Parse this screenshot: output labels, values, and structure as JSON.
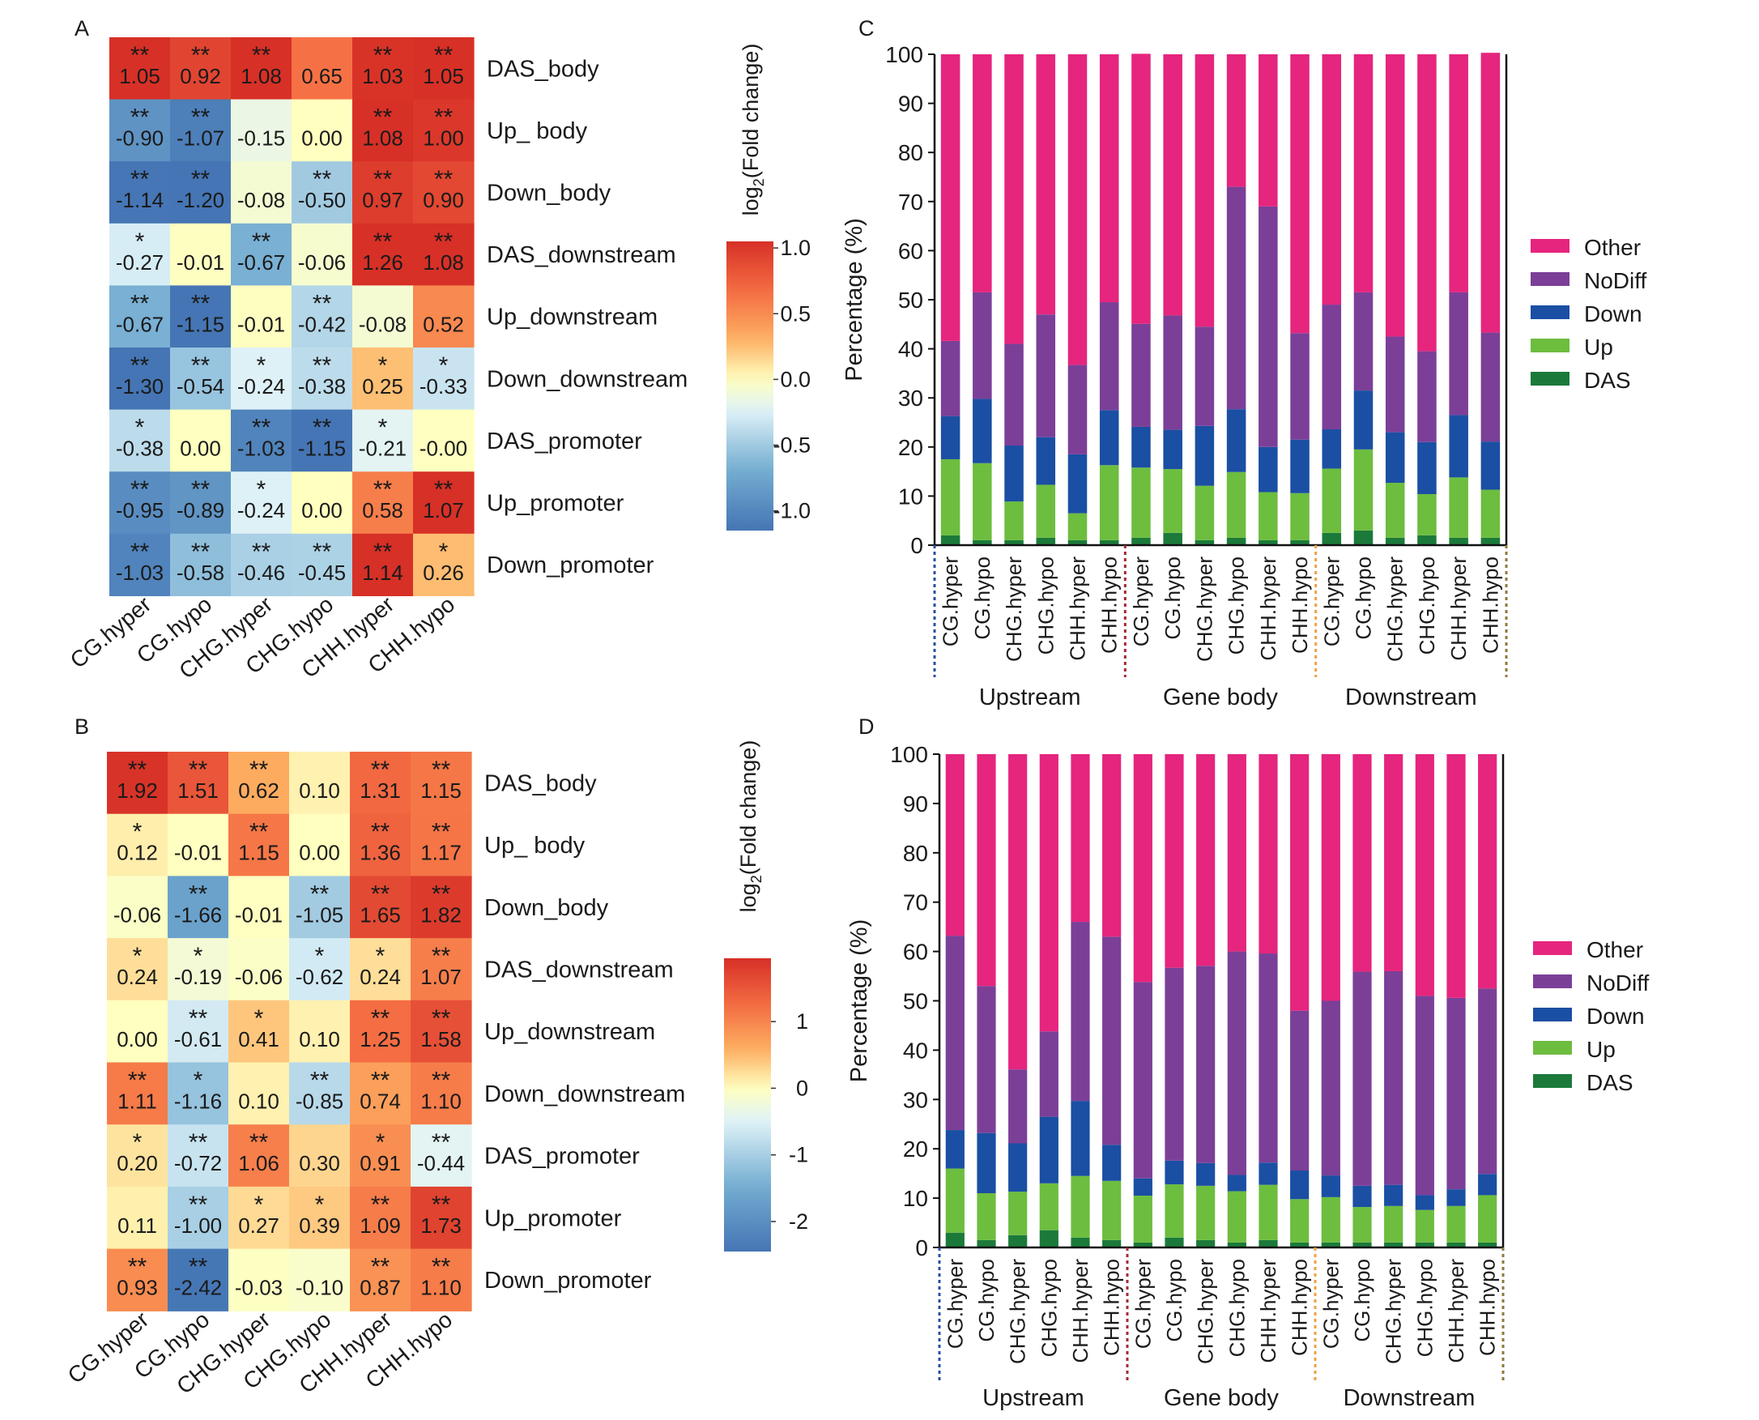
{
  "chart_data": [
    {
      "type": "heatmap",
      "panel_label": "A",
      "columns": [
        "CG.hyper",
        "CG.hypo",
        "CHG.hyper",
        "CHG.hypo",
        "CHH.hyper",
        "CHH.hypo"
      ],
      "rows": [
        "DAS_body",
        "Up_ body",
        "Down_body",
        "DAS_downstream",
        "Up_downstream",
        "Down_downstream",
        "DAS_promoter",
        "Up_promoter",
        "Down_promoter"
      ],
      "values": [
        [
          "1.05",
          "0.92",
          "1.08",
          "0.65",
          "1.03",
          "1.05"
        ],
        [
          "-0.90",
          "-1.07",
          "-0.15",
          "0.00",
          "1.08",
          "1.00"
        ],
        [
          "-1.14",
          "-1.20",
          "-0.08",
          "-0.50",
          "0.97",
          "0.90"
        ],
        [
          "-0.27",
          "-0.01",
          "-0.67",
          "-0.06",
          "1.26",
          "1.08"
        ],
        [
          "-0.67",
          "-1.15",
          "-0.01",
          "-0.42",
          "-0.08",
          "0.52"
        ],
        [
          "-1.30",
          "-0.54",
          "-0.24",
          "-0.38",
          "0.25",
          "-0.33"
        ],
        [
          "-0.38",
          "0.00",
          "-1.03",
          "-1.15",
          "-0.21",
          "-0.00"
        ],
        [
          "-0.95",
          "-0.89",
          "-0.24",
          "0.00",
          "0.58",
          "1.07"
        ],
        [
          "-1.03",
          "-0.58",
          "-0.46",
          "-0.45",
          "1.14",
          "0.26"
        ]
      ],
      "significance": [
        [
          "**",
          "**",
          "**",
          "",
          "**",
          "**"
        ],
        [
          "**",
          "**",
          "",
          "",
          "**",
          "**"
        ],
        [
          "**",
          "**",
          "",
          "**",
          "**",
          "**"
        ],
        [
          "*",
          "",
          "**",
          "",
          "**",
          "**"
        ],
        [
          "**",
          "**",
          "",
          "**",
          "",
          ""
        ],
        [
          "**",
          "**",
          "*",
          "**",
          "*",
          "*"
        ],
        [
          "*",
          "",
          "**",
          "**",
          "*",
          ""
        ],
        [
          "**",
          "**",
          "*",
          "",
          "**",
          "**"
        ],
        [
          "**",
          "**",
          "**",
          "**",
          "**",
          "*"
        ]
      ],
      "colorbar": {
        "title": "log2(Fold change)",
        "title_main": "log",
        "title_sub": "2",
        "title_rest": "(Fold change)",
        "ticks": [
          "1.0",
          "0.5",
          "0.0",
          "-0.5",
          "-1.0"
        ],
        "range": [
          -1.15,
          1.05
        ]
      }
    },
    {
      "type": "heatmap",
      "panel_label": "B",
      "columns": [
        "CG.hyper",
        "CG.hypo",
        "CHG.hyper",
        "CHG.hypo",
        "CHH.hyper",
        "CHH.hypo"
      ],
      "rows": [
        "DAS_body",
        "Up_ body",
        "Down_body",
        "DAS_downstream",
        "Up_downstream",
        "Down_downstream",
        "DAS_promoter",
        "Up_promoter",
        "Down_promoter"
      ],
      "values": [
        [
          "1.92",
          "1.51",
          "0.62",
          "0.10",
          "1.31",
          "1.15"
        ],
        [
          "0.12",
          "-0.01",
          "1.15",
          "0.00",
          "1.36",
          "1.17"
        ],
        [
          "-0.06",
          "-1.66",
          "-0.01",
          "-1.05",
          "1.65",
          "1.82"
        ],
        [
          "0.24",
          "-0.19",
          "-0.06",
          "-0.62",
          "0.24",
          "1.07"
        ],
        [
          "0.00",
          "-0.61",
          "0.41",
          "0.10",
          "1.25",
          "1.58"
        ],
        [
          "1.11",
          "-1.16",
          "0.10",
          "-0.85",
          "0.74",
          "1.10"
        ],
        [
          "0.20",
          "-0.72",
          "1.06",
          "0.30",
          "0.91",
          "-0.44"
        ],
        [
          "0.11",
          "-1.00",
          "0.27",
          "0.39",
          "1.09",
          "1.73"
        ],
        [
          "0.93",
          "-2.42",
          "-0.03",
          "-0.10",
          "0.87",
          "1.10"
        ]
      ],
      "significance": [
        [
          "**",
          "**",
          "**",
          "",
          "**",
          "**"
        ],
        [
          "*",
          "",
          "**",
          "",
          "**",
          "**"
        ],
        [
          "",
          "**",
          "",
          "**",
          "**",
          "**"
        ],
        [
          "*",
          "*",
          "",
          "*",
          "*",
          "**"
        ],
        [
          "",
          "**",
          "*",
          "",
          "**",
          "**"
        ],
        [
          "**",
          "*",
          "",
          "**",
          "**",
          "**"
        ],
        [
          "*",
          "**",
          "**",
          "",
          "*",
          "**"
        ],
        [
          "",
          "**",
          "*",
          "*",
          "**",
          "**"
        ],
        [
          "**",
          "**",
          "",
          "",
          "**",
          "**"
        ]
      ],
      "colorbar": {
        "title": "log2(Fold change)",
        "title_main": "log",
        "title_sub": "2",
        "title_rest": "(Fold change)",
        "ticks": [
          "1",
          "0",
          "-1",
          "-2"
        ],
        "range": [
          -2.45,
          1.95
        ]
      }
    },
    {
      "type": "bar",
      "stacked": true,
      "panel_label": "C",
      "ylabel": "Percentage (%)",
      "ylim": [
        0,
        100
      ],
      "yticks": [
        "0",
        "10",
        "20",
        "30",
        "40",
        "50",
        "60",
        "70",
        "80",
        "90",
        "100"
      ],
      "categories": [
        "CG.hyper",
        "CG.hypo",
        "CHG.hyper",
        "CHG.hypo",
        "CHH.hyper",
        "CHH.hypo",
        "CG.hyper",
        "CG.hypo",
        "CHG.hyper",
        "CHG.hypo",
        "CHH.hyper",
        "CHH.hypo",
        "CG.hyper",
        "CG.hypo",
        "CHG.hyper",
        "CHG.hypo",
        "CHH.hyper",
        "CHH.hypo"
      ],
      "groups": [
        {
          "label": "Upstream",
          "color": "#2a4fa6"
        },
        {
          "label": "Gene body",
          "color": "#a32b34"
        },
        {
          "label": "Downstream",
          "color": "#f0a046"
        }
      ],
      "end_line_color": "#8b7a3e",
      "series": [
        {
          "name": "DAS",
          "color": "#1b7a3a",
          "values": [
            2.0,
            1.0,
            1.0,
            1.5,
            1.0,
            1.0,
            1.5,
            2.5,
            1.0,
            1.5,
            1.0,
            1.0,
            2.5,
            3.0,
            1.5,
            2.0,
            1.5,
            1.5
          ]
        },
        {
          "name": "Up",
          "color": "#6dbd3f",
          "values": [
            15.5,
            15.7,
            7.9,
            10.8,
            5.5,
            15.3,
            14.3,
            13.0,
            11.1,
            13.4,
            9.8,
            9.6,
            13.1,
            16.5,
            11.2,
            8.4,
            12.3,
            9.8
          ]
        },
        {
          "name": "Down",
          "color": "#1a4fa3",
          "values": [
            8.8,
            13.1,
            11.4,
            9.7,
            12.0,
            11.2,
            8.3,
            8.0,
            12.2,
            12.8,
            9.2,
            10.9,
            8.0,
            12.0,
            10.3,
            10.6,
            12.7,
            9.8
          ]
        },
        {
          "name": "NoDiff",
          "color": "#7b3f98",
          "values": [
            15.3,
            21.7,
            20.7,
            25.0,
            18.2,
            22.0,
            21.0,
            23.3,
            20.2,
            45.3,
            49.0,
            21.7,
            25.4,
            20.0,
            19.5,
            18.5,
            25.0,
            22.2
          ]
        },
        {
          "name": "Other",
          "color": "#e5257e",
          "values": [
            58.4,
            48.5,
            59.0,
            53.0,
            63.3,
            50.5,
            55.0,
            53.2,
            55.5,
            27.0,
            31.0,
            56.8,
            51.0,
            48.5,
            57.5,
            60.5,
            48.5,
            57.0
          ]
        }
      ],
      "legend": {
        "position": "right",
        "order": [
          "Other",
          "NoDiff",
          "Down",
          "Up",
          "DAS"
        ]
      }
    },
    {
      "type": "bar",
      "stacked": true,
      "panel_label": "D",
      "ylabel": "Percentage (%)",
      "ylim": [
        0,
        100
      ],
      "yticks": [
        "0",
        "10",
        "20",
        "30",
        "40",
        "50",
        "60",
        "70",
        "80",
        "90",
        "100"
      ],
      "categories": [
        "CG.hyper",
        "CG.hypo",
        "CHG.hyper",
        "CHG.hypo",
        "CHH.hyper",
        "CHH.hypo",
        "CG.hyper",
        "CG.hypo",
        "CHG.hyper",
        "CHG.hypo",
        "CHH.hyper",
        "CHH.hypo",
        "CG.hyper",
        "CG.hypo",
        "CHG.hyper",
        "CHG.hypo",
        "CHH.hyper",
        "CHH.hypo"
      ],
      "groups": [
        {
          "label": "Upstream",
          "color": "#2a4fa6"
        },
        {
          "label": "Gene body",
          "color": "#a32b34"
        },
        {
          "label": "Downstream",
          "color": "#f0a046"
        }
      ],
      "end_line_color": "#8b7a3e",
      "series": [
        {
          "name": "DAS",
          "color": "#1b7a3a",
          "values": [
            3.0,
            1.5,
            2.5,
            3.5,
            2.0,
            1.5,
            1.0,
            2.0,
            1.5,
            1.0,
            1.5,
            1.0,
            1.0,
            1.0,
            1.0,
            1.0,
            1.0,
            1.0
          ]
        },
        {
          "name": "Up",
          "color": "#6dbd3f",
          "values": [
            13.0,
            9.5,
            8.8,
            9.5,
            12.5,
            12.0,
            9.5,
            10.8,
            11.0,
            10.4,
            11.2,
            8.8,
            9.2,
            7.2,
            7.4,
            6.6,
            7.4,
            9.6
          ]
        },
        {
          "name": "Down",
          "color": "#1a4fa3",
          "values": [
            7.8,
            12.2,
            9.8,
            13.5,
            15.2,
            7.3,
            3.5,
            4.8,
            4.6,
            3.3,
            4.5,
            5.8,
            4.4,
            4.3,
            4.3,
            3.0,
            3.4,
            4.3
          ]
        },
        {
          "name": "NoDiff",
          "color": "#7b3f98",
          "values": [
            39.4,
            29.8,
            15.0,
            17.3,
            36.3,
            42.2,
            39.8,
            39.1,
            40.0,
            45.3,
            42.4,
            32.4,
            35.4,
            43.4,
            43.3,
            40.4,
            38.8,
            37.6
          ]
        },
        {
          "name": "Other",
          "color": "#e5257e",
          "values": [
            36.8,
            47.0,
            63.9,
            56.2,
            34.0,
            37.0,
            46.2,
            43.3,
            42.9,
            40.0,
            40.4,
            52.0,
            50.0,
            44.1,
            44.0,
            49.0,
            49.4,
            47.5
          ]
        }
      ],
      "legend": {
        "position": "right",
        "order": [
          "Other",
          "NoDiff",
          "Down",
          "Up",
          "DAS"
        ]
      }
    }
  ]
}
